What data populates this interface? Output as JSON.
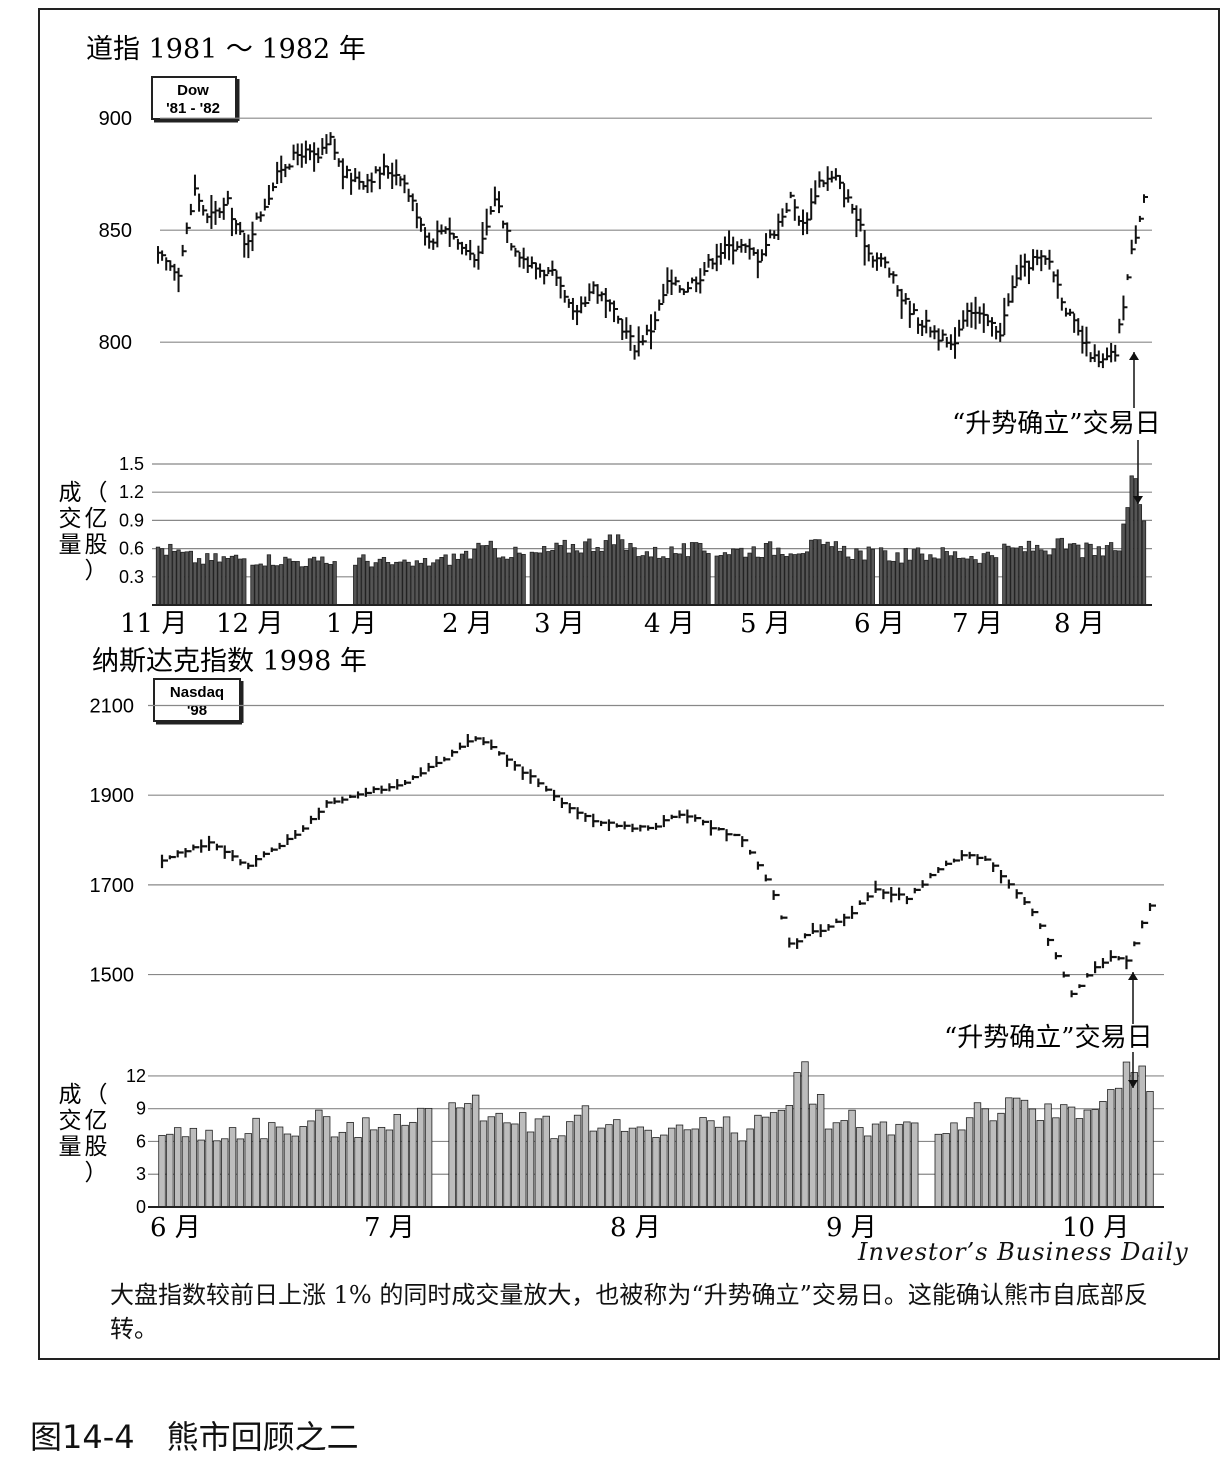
{
  "chart_data": [
    {
      "type": "bar",
      "subtype": "price-hlc-with-volume",
      "title": "道指 1981 ～ 1982 年",
      "badge": "Dow\n'81 - '82",
      "price_axis": {
        "ticks": [
          900,
          850,
          800
        ],
        "ylim": [
          780,
          905
        ]
      },
      "volume_axis": {
        "label": "成交量（亿股）",
        "ticks": [
          "1.5",
          "1.2",
          "0.9",
          "0.6",
          "0.3"
        ],
        "ylim": [
          0,
          1.5
        ]
      },
      "x_labels": [
        "11 月",
        "12 月",
        "1 月",
        "2 月",
        "3 月",
        "4 月",
        "5 月",
        "6 月",
        "7 月",
        "8 月"
      ],
      "price_keypoints": [
        [
          0,
          838
        ],
        [
          5,
          832
        ],
        [
          9,
          868
        ],
        [
          12,
          855
        ],
        [
          17,
          862
        ],
        [
          21,
          843
        ],
        [
          25,
          858
        ],
        [
          30,
          878
        ],
        [
          35,
          885
        ],
        [
          39,
          882
        ],
        [
          42,
          890
        ],
        [
          45,
          875
        ],
        [
          50,
          872
        ],
        [
          55,
          877
        ],
        [
          59,
          875
        ],
        [
          62,
          862
        ],
        [
          66,
          845
        ],
        [
          70,
          852
        ],
        [
          74,
          842
        ],
        [
          78,
          838
        ],
        [
          82,
          865
        ],
        [
          86,
          845
        ],
        [
          90,
          835
        ],
        [
          96,
          830
        ],
        [
          101,
          812
        ],
        [
          106,
          825
        ],
        [
          112,
          810
        ],
        [
          116,
          798
        ],
        [
          120,
          806
        ],
        [
          124,
          826
        ],
        [
          128,
          824
        ],
        [
          132,
          830
        ],
        [
          136,
          840
        ],
        [
          141,
          844
        ],
        [
          146,
          838
        ],
        [
          150,
          850
        ],
        [
          154,
          864
        ],
        [
          157,
          852
        ],
        [
          161,
          872
        ],
        [
          165,
          873
        ],
        [
          169,
          860
        ],
        [
          173,
          840
        ],
        [
          177,
          835
        ],
        [
          181,
          820
        ],
        [
          185,
          810
        ],
        [
          189,
          805
        ],
        [
          193,
          797
        ],
        [
          197,
          816
        ],
        [
          201,
          810
        ],
        [
          205,
          805
        ],
        [
          209,
          830
        ],
        [
          213,
          837
        ],
        [
          217,
          836
        ],
        [
          221,
          815
        ],
        [
          225,
          800
        ],
        [
          229,
          790
        ],
        [
          233,
          795
        ],
        [
          237,
          840
        ],
        [
          240,
          866
        ]
      ],
      "volume_keypoints": [
        [
          0,
          0.62
        ],
        [
          10,
          0.48
        ],
        [
          20,
          0.5
        ],
        [
          30,
          0.48
        ],
        [
          40,
          0.45
        ],
        [
          50,
          0.48
        ],
        [
          60,
          0.42
        ],
        [
          70,
          0.48
        ],
        [
          80,
          0.6
        ],
        [
          90,
          0.52
        ],
        [
          100,
          0.62
        ],
        [
          110,
          0.68
        ],
        [
          120,
          0.55
        ],
        [
          130,
          0.58
        ],
        [
          140,
          0.58
        ],
        [
          150,
          0.6
        ],
        [
          160,
          0.62
        ],
        [
          170,
          0.56
        ],
        [
          180,
          0.52
        ],
        [
          190,
          0.55
        ],
        [
          200,
          0.52
        ],
        [
          210,
          0.6
        ],
        [
          220,
          0.62
        ],
        [
          230,
          0.55
        ],
        [
          234,
          0.62
        ],
        [
          236,
          1.05
        ],
        [
          238,
          1.45
        ],
        [
          240,
          1.05
        ]
      ],
      "annotation": "“升势确立”交易日"
    },
    {
      "type": "bar",
      "subtype": "price-hlc-with-volume",
      "title": "纳斯达克指数 1998 年",
      "badge": "Nasdaq\n'98",
      "price_axis": {
        "ticks": [
          2100,
          1900,
          1700,
          1500
        ],
        "ylim": [
          1450,
          2110
        ]
      },
      "volume_axis": {
        "label": "成交量（亿股）",
        "ticks": [
          "12",
          "9",
          "6",
          "3",
          "0"
        ],
        "ylim": [
          0,
          13
        ]
      },
      "x_labels": [
        "6 月",
        "7 月",
        "8 月",
        "9 月",
        "10 月"
      ],
      "price_keypoints": [
        [
          0,
          1755
        ],
        [
          6,
          1795
        ],
        [
          9,
          1760
        ],
        [
          11,
          1745
        ],
        [
          14,
          1780
        ],
        [
          17,
          1810
        ],
        [
          21,
          1885
        ],
        [
          27,
          1910
        ],
        [
          30,
          1920
        ],
        [
          36,
          1980
        ],
        [
          40,
          2030
        ],
        [
          43,
          1990
        ],
        [
          47,
          1940
        ],
        [
          52,
          1870
        ],
        [
          55,
          1845
        ],
        [
          58,
          1830
        ],
        [
          62,
          1825
        ],
        [
          66,
          1860
        ],
        [
          70,
          1830
        ],
        [
          74,
          1800
        ],
        [
          78,
          1680
        ],
        [
          80,
          1570
        ],
        [
          84,
          1600
        ],
        [
          88,
          1640
        ],
        [
          91,
          1690
        ],
        [
          95,
          1670
        ],
        [
          98,
          1720
        ],
        [
          102,
          1770
        ],
        [
          105,
          1760
        ],
        [
          108,
          1700
        ],
        [
          111,
          1640
        ],
        [
          114,
          1545
        ],
        [
          116,
          1455
        ],
        [
          118,
          1500
        ],
        [
          121,
          1540
        ],
        [
          123,
          1530
        ],
        [
          126,
          1655
        ]
      ],
      "volume_keypoints": [
        [
          0,
          6.5
        ],
        [
          8,
          6.8
        ],
        [
          12,
          7.3
        ],
        [
          16,
          6.8
        ],
        [
          20,
          7.8
        ],
        [
          24,
          6.8
        ],
        [
          28,
          7.5
        ],
        [
          30,
          8.5
        ],
        [
          34,
          8.5
        ],
        [
          38,
          9.2
        ],
        [
          42,
          8.7
        ],
        [
          46,
          8.3
        ],
        [
          50,
          7.3
        ],
        [
          54,
          8.3
        ],
        [
          58,
          7.1
        ],
        [
          62,
          7.4
        ],
        [
          66,
          7.0
        ],
        [
          70,
          7.4
        ],
        [
          74,
          7.0
        ],
        [
          78,
          8.5
        ],
        [
          80,
          9.6
        ],
        [
          82,
          12.5
        ],
        [
          84,
          9.5
        ],
        [
          86,
          7.0
        ],
        [
          88,
          8.0
        ],
        [
          92,
          7.3
        ],
        [
          96,
          7.6
        ],
        [
          100,
          7.0
        ],
        [
          104,
          8.9
        ],
        [
          108,
          8.9
        ],
        [
          112,
          8.4
        ],
        [
          116,
          9.3
        ],
        [
          120,
          9.8
        ],
        [
          122,
          10.5
        ],
        [
          124,
          13.0
        ],
        [
          126,
          9.5
        ]
      ],
      "annotation": "“升势确立”交易日"
    }
  ],
  "source": "Investor’s Business Daily",
  "caption": "大盘指数较前日上涨 1% 的同时成交量放大，也被称为“升势确立”交易日。这能确认熊市自底部反转。",
  "figure_title": "图14-4　熊市回顾之二"
}
